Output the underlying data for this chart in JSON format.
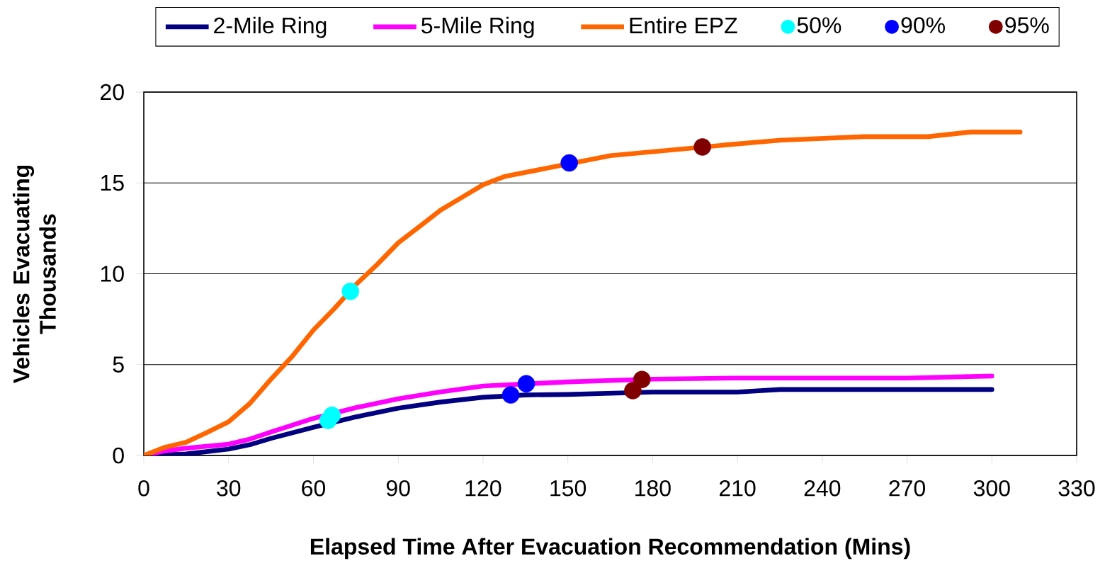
{
  "chart_data": {
    "type": "line",
    "xlabel": "Elapsed Time After Evacuation Recommendation (Mins)",
    "ylabel": "Vehicles Evacuating Thousands",
    "xlim": [
      0,
      330
    ],
    "xticks": [
      0,
      30,
      60,
      90,
      120,
      150,
      180,
      210,
      240,
      270,
      300,
      330
    ],
    "ylim": [
      0,
      20
    ],
    "yticks": [
      0,
      5,
      10,
      15,
      20
    ],
    "grid": "y",
    "legend": "top",
    "series": [
      {
        "name": "2-Mile Ring",
        "color": "#000080",
        "x": [
          0,
          15,
          30,
          37.5,
          45,
          60,
          75,
          90,
          105,
          120,
          135,
          150,
          180,
          210,
          225,
          300
        ],
        "values": [
          0,
          0.08,
          0.35,
          0.59,
          0.94,
          1.55,
          2.12,
          2.6,
          2.94,
          3.2,
          3.33,
          3.36,
          3.49,
          3.49,
          3.63,
          3.63
        ]
      },
      {
        "name": "5-Mile Ring",
        "color": "#ff00ff",
        "x": [
          0,
          7.5,
          15,
          30,
          37.5,
          45,
          60,
          75,
          90,
          105,
          120,
          150,
          180,
          210,
          270,
          300
        ],
        "values": [
          0,
          0.25,
          0.4,
          0.62,
          0.9,
          1.29,
          2.04,
          2.63,
          3.12,
          3.5,
          3.82,
          4.05,
          4.2,
          4.26,
          4.26,
          4.37
        ]
      },
      {
        "name": "Entire EPZ",
        "color": "#ff6600",
        "x": [
          0,
          7.5,
          15,
          22.5,
          30,
          37.5,
          45,
          52.5,
          60,
          67.5,
          75,
          82.5,
          90,
          97.5,
          105,
          112.5,
          120,
          127.5,
          165,
          210,
          225,
          255,
          277.5,
          292.5,
          310
        ],
        "values": [
          0,
          0.45,
          0.73,
          1.28,
          1.85,
          2.86,
          4.2,
          5.45,
          6.9,
          8.1,
          9.4,
          10.5,
          11.7,
          12.6,
          13.5,
          14.2,
          14.9,
          15.35,
          16.5,
          17.15,
          17.35,
          17.55,
          17.55,
          17.8,
          17.8
        ]
      },
      {
        "name": "50%",
        "type": "scatter",
        "color": "#00ffff",
        "x": [
          65.2,
          66.6,
          73.1
        ],
        "values": [
          1.93,
          2.21,
          9.03
        ]
      },
      {
        "name": "90%",
        "type": "scatter",
        "color": "#0000ff",
        "x": [
          129.8,
          135.3,
          150.5
        ],
        "values": [
          3.33,
          3.95,
          16.1
        ]
      },
      {
        "name": "95%",
        "type": "scatter",
        "color": "#800000",
        "x": [
          173,
          176.2,
          197.6
        ],
        "values": [
          3.57,
          4.18,
          16.98
        ]
      }
    ]
  }
}
